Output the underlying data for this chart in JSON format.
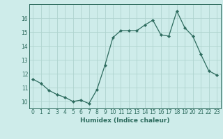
{
  "x": [
    0,
    1,
    2,
    3,
    4,
    5,
    6,
    7,
    8,
    9,
    10,
    11,
    12,
    13,
    14,
    15,
    16,
    17,
    18,
    19,
    20,
    21,
    22,
    23
  ],
  "y": [
    11.6,
    11.3,
    10.8,
    10.5,
    10.3,
    10.0,
    10.1,
    9.85,
    10.85,
    12.6,
    14.6,
    15.1,
    15.1,
    15.1,
    15.5,
    15.85,
    14.8,
    14.7,
    16.5,
    15.3,
    14.7,
    13.4,
    12.2,
    11.9
  ],
  "line_color": "#2d6b5e",
  "marker": "D",
  "marker_size": 2.2,
  "bg_color": "#ceecea",
  "grid_color": "#afd4cf",
  "tick_color": "#2d6b5e",
  "xlabel": "Humidex (Indice chaleur)",
  "ylim": [
    9.5,
    17.0
  ],
  "xlim": [
    -0.5,
    23.5
  ],
  "yticks": [
    10,
    11,
    12,
    13,
    14,
    15,
    16
  ],
  "xticks": [
    0,
    1,
    2,
    3,
    4,
    5,
    6,
    7,
    8,
    9,
    10,
    11,
    12,
    13,
    14,
    15,
    16,
    17,
    18,
    19,
    20,
    21,
    22,
    23
  ],
  "label_fontsize": 6.5,
  "tick_fontsize": 5.5
}
